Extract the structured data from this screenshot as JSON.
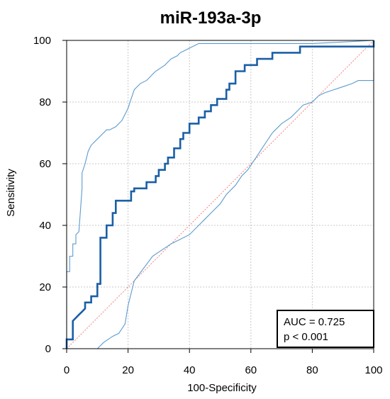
{
  "chart_data": {
    "type": "line",
    "title": "miR-193a-3p",
    "xlabel": "100-Specificity",
    "ylabel": "Sensitivity",
    "xlim": [
      0,
      100
    ],
    "ylim": [
      0,
      100
    ],
    "xticks": [
      "0",
      "20",
      "40",
      "60",
      "80",
      "100"
    ],
    "yticks": [
      "0",
      "20",
      "40",
      "60",
      "80",
      "100"
    ],
    "grid": true,
    "annotations": [
      "AUC = 0.725",
      "p < 0.001"
    ],
    "colors": {
      "roc": "#1a5fa6",
      "ci": "#5b9bd0",
      "reference": "#f08080",
      "grid": "#c8c8c8"
    },
    "series": [
      {
        "role": "roc",
        "x": [
          0,
          0,
          2,
          2,
          4,
          5,
          6,
          6,
          8,
          8,
          10,
          10,
          11,
          11,
          13,
          13,
          15,
          15,
          16,
          16,
          21,
          21,
          22,
          22,
          26,
          26,
          29,
          29,
          30,
          30,
          32,
          32,
          33,
          33,
          35,
          35,
          37,
          37,
          38,
          38,
          40,
          40,
          43,
          43,
          45,
          45,
          47,
          47,
          49,
          49,
          52,
          52,
          53,
          53,
          55,
          55,
          58,
          58,
          62,
          62,
          67,
          67,
          76,
          76,
          100,
          100
        ],
        "y": [
          0,
          3,
          3,
          9,
          11,
          12,
          13,
          15,
          15,
          17,
          17,
          21,
          21,
          36,
          36,
          40,
          40,
          44,
          44,
          48,
          48,
          51,
          51,
          52,
          52,
          54,
          54,
          56,
          56,
          58,
          58,
          60,
          60,
          62,
          62,
          65,
          65,
          68,
          68,
          70,
          70,
          73,
          73,
          75,
          75,
          77,
          77,
          79,
          79,
          81,
          81,
          84,
          84,
          86,
          86,
          90,
          90,
          92,
          92,
          94,
          94,
          96,
          96,
          98,
          98,
          100
        ]
      },
      {
        "role": "ci-upper",
        "x": [
          0,
          0,
          1,
          1,
          2,
          2,
          3,
          3,
          4,
          5,
          5,
          6,
          7,
          8,
          9,
          10,
          11,
          12,
          13,
          14,
          16,
          17,
          18,
          19,
          20,
          21,
          22,
          24,
          26,
          27,
          28,
          29,
          32,
          33,
          34,
          36,
          37,
          39,
          41,
          43,
          45,
          48,
          55,
          65,
          80,
          100
        ],
        "y": [
          0,
          25,
          25,
          30,
          30,
          34,
          34,
          37,
          38,
          52,
          57,
          60,
          64,
          66,
          67,
          68,
          69,
          70,
          71,
          71,
          72,
          73,
          74,
          76,
          78,
          81,
          84,
          86,
          87,
          88,
          89,
          90,
          92,
          93,
          94,
          95,
          96,
          97,
          98,
          99,
          99,
          99,
          99,
          99,
          99,
          100
        ]
      },
      {
        "role": "ci-lower",
        "x": [
          0,
          10,
          12,
          15,
          17,
          19,
          20,
          22,
          25,
          28,
          31,
          34,
          36,
          40,
          43,
          45,
          47,
          50,
          52,
          55,
          57,
          59,
          61,
          63,
          65,
          67,
          69,
          70,
          73,
          75,
          77,
          80,
          82,
          84,
          87,
          90,
          93,
          95,
          98,
          100,
          100
        ],
        "y": [
          0,
          0,
          2,
          4,
          5,
          8,
          14,
          22,
          26,
          30,
          32,
          34,
          35,
          37,
          40,
          42,
          44,
          47,
          50,
          53,
          56,
          58,
          61,
          64,
          67,
          70,
          72,
          73,
          75,
          77,
          79,
          80,
          82,
          83,
          84,
          85,
          86,
          87,
          87,
          87,
          90
        ]
      }
    ]
  }
}
